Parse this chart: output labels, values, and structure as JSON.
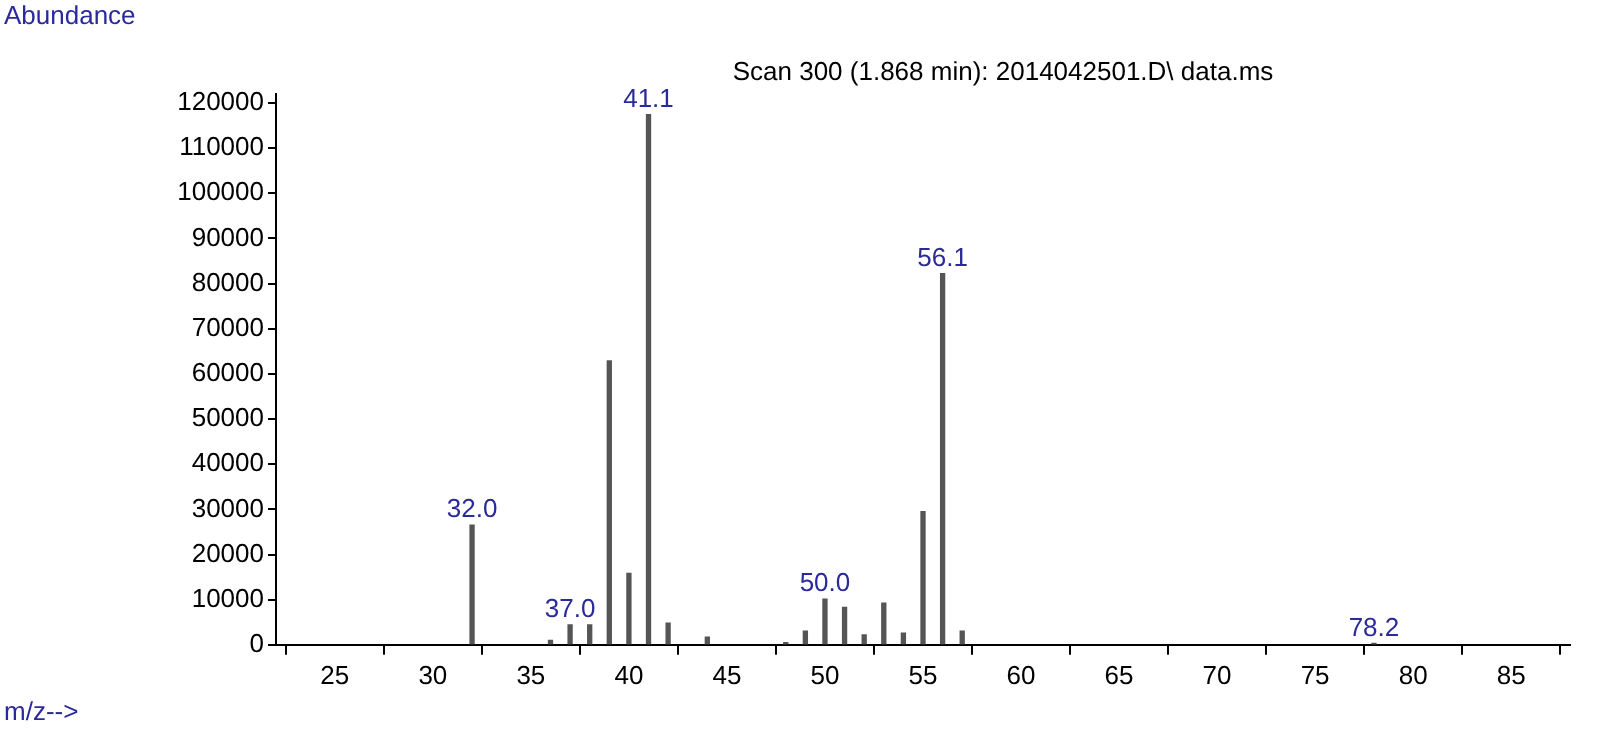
{
  "chart_data": {
    "type": "bar",
    "title": "Scan 300 (1.868 min): 2014042501.D\\ data.ms",
    "xlabel": "m/z-->",
    "ylabel": "Abundance",
    "x": [
      32,
      36,
      37,
      38,
      39,
      40,
      41,
      42,
      44,
      48,
      49,
      50,
      51,
      52,
      53,
      54,
      55,
      56,
      57,
      78
    ],
    "values": [
      26500,
      1000,
      4400,
      4400,
      62900,
      15800,
      117400,
      4800,
      1700,
      500,
      3000,
      10100,
      8300,
      2200,
      9200,
      2600,
      29500,
      82200,
      3000,
      300
    ],
    "color": "#555555",
    "xlim": [
      22,
      88
    ],
    "xticks": [
      25,
      30,
      35,
      40,
      45,
      50,
      55,
      60,
      65,
      70,
      75,
      80,
      85
    ],
    "ylim": [
      0,
      122000
    ],
    "yticks": [
      0,
      10000,
      20000,
      30000,
      40000,
      50000,
      60000,
      70000,
      80000,
      90000,
      100000,
      110000,
      120000
    ],
    "annotations": [
      {
        "text": "32.0",
        "x": 32,
        "y": 26500
      },
      {
        "text": "37.0",
        "x": 37,
        "y": 4400
      },
      {
        "text": "41.1",
        "x": 41,
        "y": 117400
      },
      {
        "text": "50.0",
        "x": 50,
        "y": 10100
      },
      {
        "text": "56.1",
        "x": 56,
        "y": 82200
      },
      {
        "text": "78.2",
        "x": 78,
        "y": 300
      }
    ],
    "grid": false,
    "legend": false
  }
}
